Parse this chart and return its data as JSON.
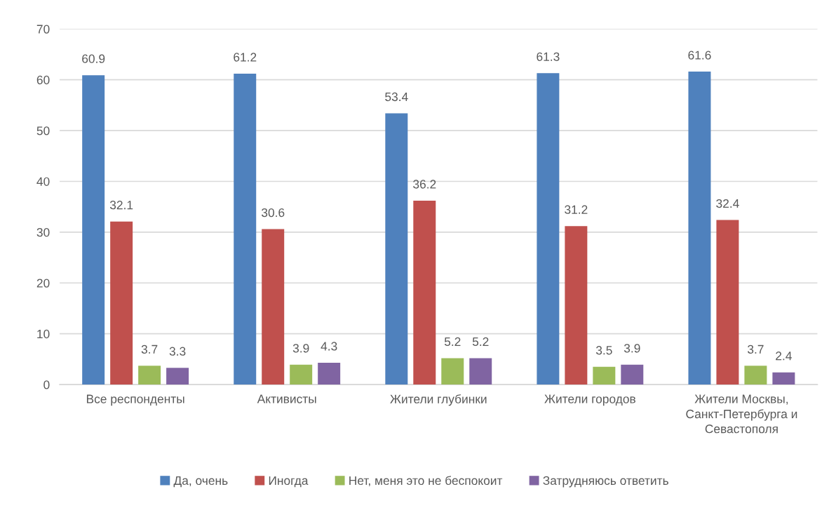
{
  "chart_data": {
    "type": "bar",
    "categories": [
      "Все респонденты",
      "Активисты",
      "Жители глубинки",
      "Жители городов",
      "Жители Москвы,\nСанкт-Петербурга и\nСевастополя"
    ],
    "series": [
      {
        "name": "Да, очень",
        "color": "#4f81bd",
        "values": [
          60.9,
          61.2,
          53.4,
          61.3,
          61.6
        ]
      },
      {
        "name": "Иногда",
        "color": "#c0504d",
        "values": [
          32.1,
          30.6,
          36.2,
          31.2,
          32.4
        ]
      },
      {
        "name": "Нет, меня это не беспокоит",
        "color": "#9bbb59",
        "values": [
          3.7,
          3.9,
          5.2,
          3.5,
          3.7
        ]
      },
      {
        "name": "Затрудняюсь ответить",
        "color": "#8064a2",
        "values": [
          3.3,
          4.3,
          5.2,
          3.9,
          2.4
        ]
      }
    ],
    "ylim": [
      0,
      70
    ],
    "yticks": [
      0,
      10,
      20,
      30,
      40,
      50,
      60,
      70
    ],
    "grid": "y",
    "legend": "bottom",
    "data_labels": true
  }
}
